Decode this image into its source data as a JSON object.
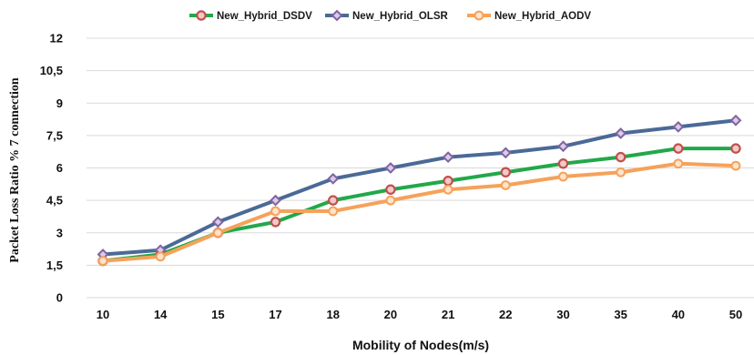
{
  "chart_data": {
    "type": "line",
    "title": "",
    "xlabel": "Mobility of Nodes(m/s)",
    "ylabel": "Packet Loss Ratio % 7 connection",
    "categories": [
      "10",
      "14",
      "15",
      "17",
      "18",
      "20",
      "21",
      "22",
      "30",
      "35",
      "40",
      "50"
    ],
    "ylim": [
      0,
      12
    ],
    "yticks": [
      "0",
      "1,5",
      "3",
      "4,5",
      "6",
      "7,5",
      "9",
      "10,5",
      "12"
    ],
    "grid": "horizontal",
    "legend_position": "top-center",
    "series": [
      {
        "name": "New_Hybrid_DSDV",
        "line_color": "#22a84a",
        "marker_color": "#c0504d",
        "values": [
          1.7,
          2.0,
          3.0,
          3.5,
          4.5,
          5.0,
          5.4,
          5.8,
          6.2,
          6.5,
          6.9,
          6.9
        ]
      },
      {
        "name": "New_Hybrid_OLSR",
        "line_color": "#4a6a96",
        "marker_color": "#8064a2",
        "values": [
          2.0,
          2.2,
          3.5,
          4.5,
          5.5,
          6.0,
          6.5,
          6.7,
          7.0,
          7.6,
          7.9,
          8.2
        ]
      },
      {
        "name": "New_Hybrid_AODV",
        "line_color": "#f5a25a",
        "marker_color": "#f5a25a",
        "values": [
          1.7,
          1.9,
          3.0,
          4.0,
          4.0,
          4.5,
          5.0,
          5.2,
          5.6,
          5.8,
          6.2,
          6.1
        ]
      }
    ]
  }
}
